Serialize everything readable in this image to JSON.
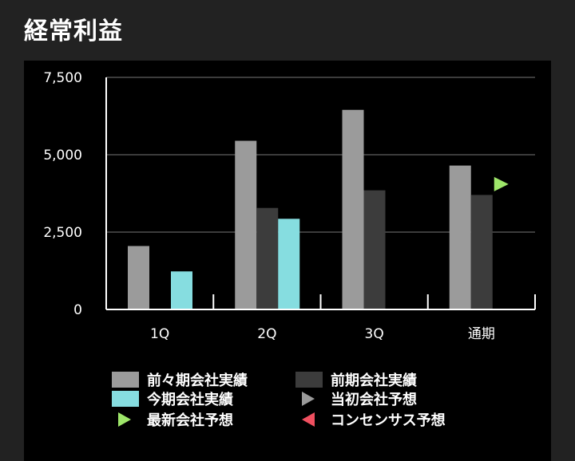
{
  "page": {
    "title": "経常利益"
  },
  "colors": {
    "prev2_actual": "#9b9b9b",
    "prev_actual": "#3c3c3c",
    "current_actual": "#86dde0",
    "initial_forecast": "#9b9b9b",
    "latest_forecast": "#9ee66a",
    "consensus": "#f05060",
    "grid": "#777777",
    "axis": "#ffffff"
  },
  "chart_data": {
    "type": "bar",
    "title": "経常利益",
    "categories": [
      "1Q",
      "2Q",
      "3Q",
      "通期"
    ],
    "ylim": [
      0,
      7500
    ],
    "yticks": [
      0,
      2500,
      5000,
      7500
    ],
    "ytick_labels": [
      "0",
      "2,500",
      "5,000",
      "7,500"
    ],
    "grid": true,
    "legend_position": "bottom",
    "series": [
      {
        "name": "前々期会社実績",
        "color_key": "prev2_actual",
        "values": [
          2050,
          5450,
          6450,
          4650
        ]
      },
      {
        "name": "前期会社実績",
        "color_key": "prev_actual",
        "values": [
          null,
          3280,
          3850,
          3700
        ]
      },
      {
        "name": "今期会社実績",
        "color_key": "current_actual",
        "values": [
          1230,
          2930,
          null,
          null
        ]
      }
    ],
    "markers": [
      {
        "name": "当初会社予想",
        "color_key": "initial_forecast",
        "values": [
          null,
          null,
          null,
          null
        ]
      },
      {
        "name": "最新会社予想",
        "color_key": "latest_forecast",
        "values": [
          null,
          null,
          null,
          4050
        ]
      },
      {
        "name": "コンセンサス予想",
        "color_key": "consensus",
        "values": [
          null,
          null,
          null,
          null
        ]
      }
    ]
  },
  "legend": [
    {
      "label": "前々期会社実績",
      "kind": "swatch",
      "color_key": "prev2_actual"
    },
    {
      "label": "前期会社実績",
      "kind": "swatch",
      "color_key": "prev_actual"
    },
    {
      "label": "今期会社実績",
      "kind": "swatch",
      "color_key": "current_actual"
    },
    {
      "label": "当初会社予想",
      "kind": "tri-right",
      "color_key": "initial_forecast"
    },
    {
      "label": "最新会社予想",
      "kind": "tri-right",
      "color_key": "latest_forecast"
    },
    {
      "label": "コンセンサス予想",
      "kind": "tri-left",
      "color_key": "consensus"
    }
  ]
}
